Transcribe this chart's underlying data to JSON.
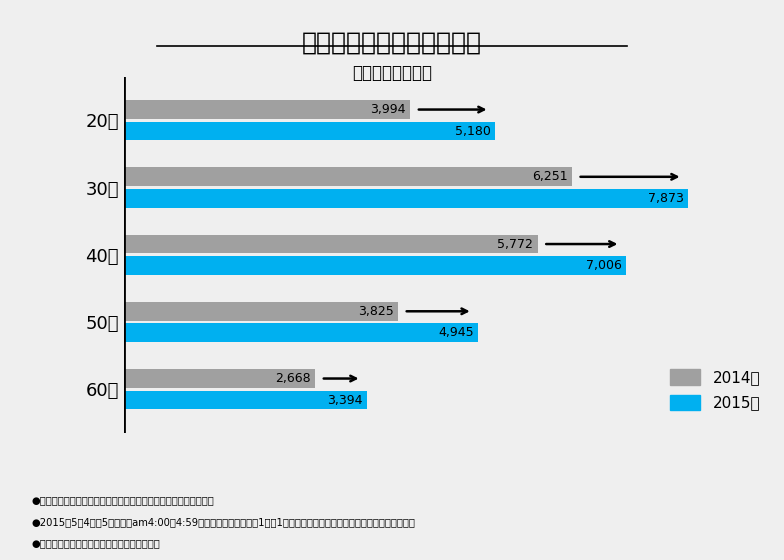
{
  "title": "石川県来訪者の年齢別内訳",
  "subtitle": "（首都圏居住者）",
  "categories": [
    "20代",
    "30代",
    "40代",
    "50代",
    "60代"
  ],
  "values_2014": [
    3994,
    6251,
    5772,
    3825,
    2668
  ],
  "values_2015": [
    5180,
    7873,
    7006,
    4945,
    3394
  ],
  "labels_2014": [
    "3,994",
    "6,251",
    "5,772",
    "3,825",
    "2,668"
  ],
  "labels_2015": [
    "5,180",
    "7,873",
    "7,006",
    "4,945",
    "3,394"
  ],
  "color_2014": "#a0a0a0",
  "color_2015": "#00b0f0",
  "background_color": "#efefef",
  "max_value": 9000,
  "bar_height": 0.28,
  "footnotes": [
    "●出典：ドコモ・インサイトマーケティング「モバイル空間統計」",
    "●2015年5月4日・5日の各日am4:00～4:59の滞在者を集計し、「1日の1時間あたり」の人数として平均化。前年も同様。",
    "●首都圏は東京都・千葉県・埼玉県・神奈川県"
  ],
  "legend_2014": "2014年",
  "legend_2015": "2015年"
}
